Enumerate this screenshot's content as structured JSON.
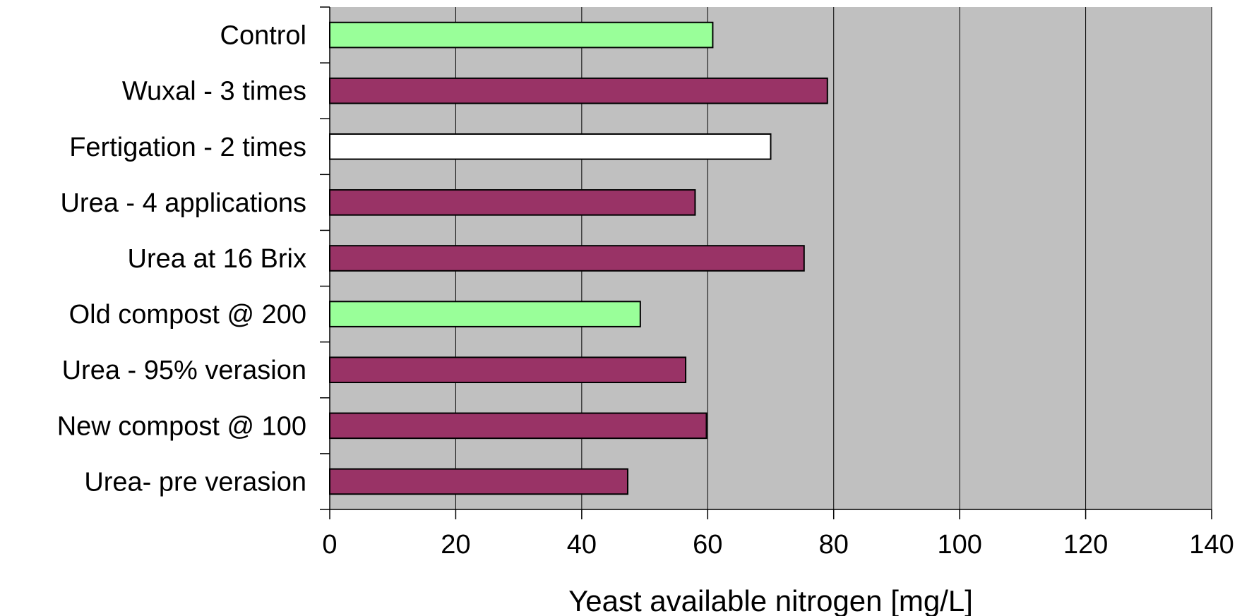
{
  "chart_data": {
    "type": "bar",
    "orientation": "horizontal",
    "categories": [
      "Control",
      "Wuxal - 3 times",
      "Fertigation - 2 times",
      "Urea - 4 applications",
      "Urea at 16 Brix",
      "Old compost @ 200",
      "Urea - 95% verasion",
      "New compost @ 100",
      "Urea- pre verasion"
    ],
    "values": [
      60.8,
      79.0,
      70.0,
      58.0,
      75.3,
      49.3,
      56.5,
      59.8,
      47.3
    ],
    "bar_colors": [
      "#99ff99",
      "#993366",
      "#ffffff",
      "#993366",
      "#993366",
      "#99ff99",
      "#993366",
      "#993366",
      "#993366"
    ],
    "xlabel": "Yeast available nitrogen [mg/L]",
    "ylabel": "",
    "xlim": [
      0,
      140
    ],
    "xticks": [
      "0",
      "20",
      "40",
      "60",
      "80",
      "100",
      "120",
      "140"
    ],
    "grid": "vertical",
    "plot_background": "#c0c0c0",
    "legend": "none"
  }
}
